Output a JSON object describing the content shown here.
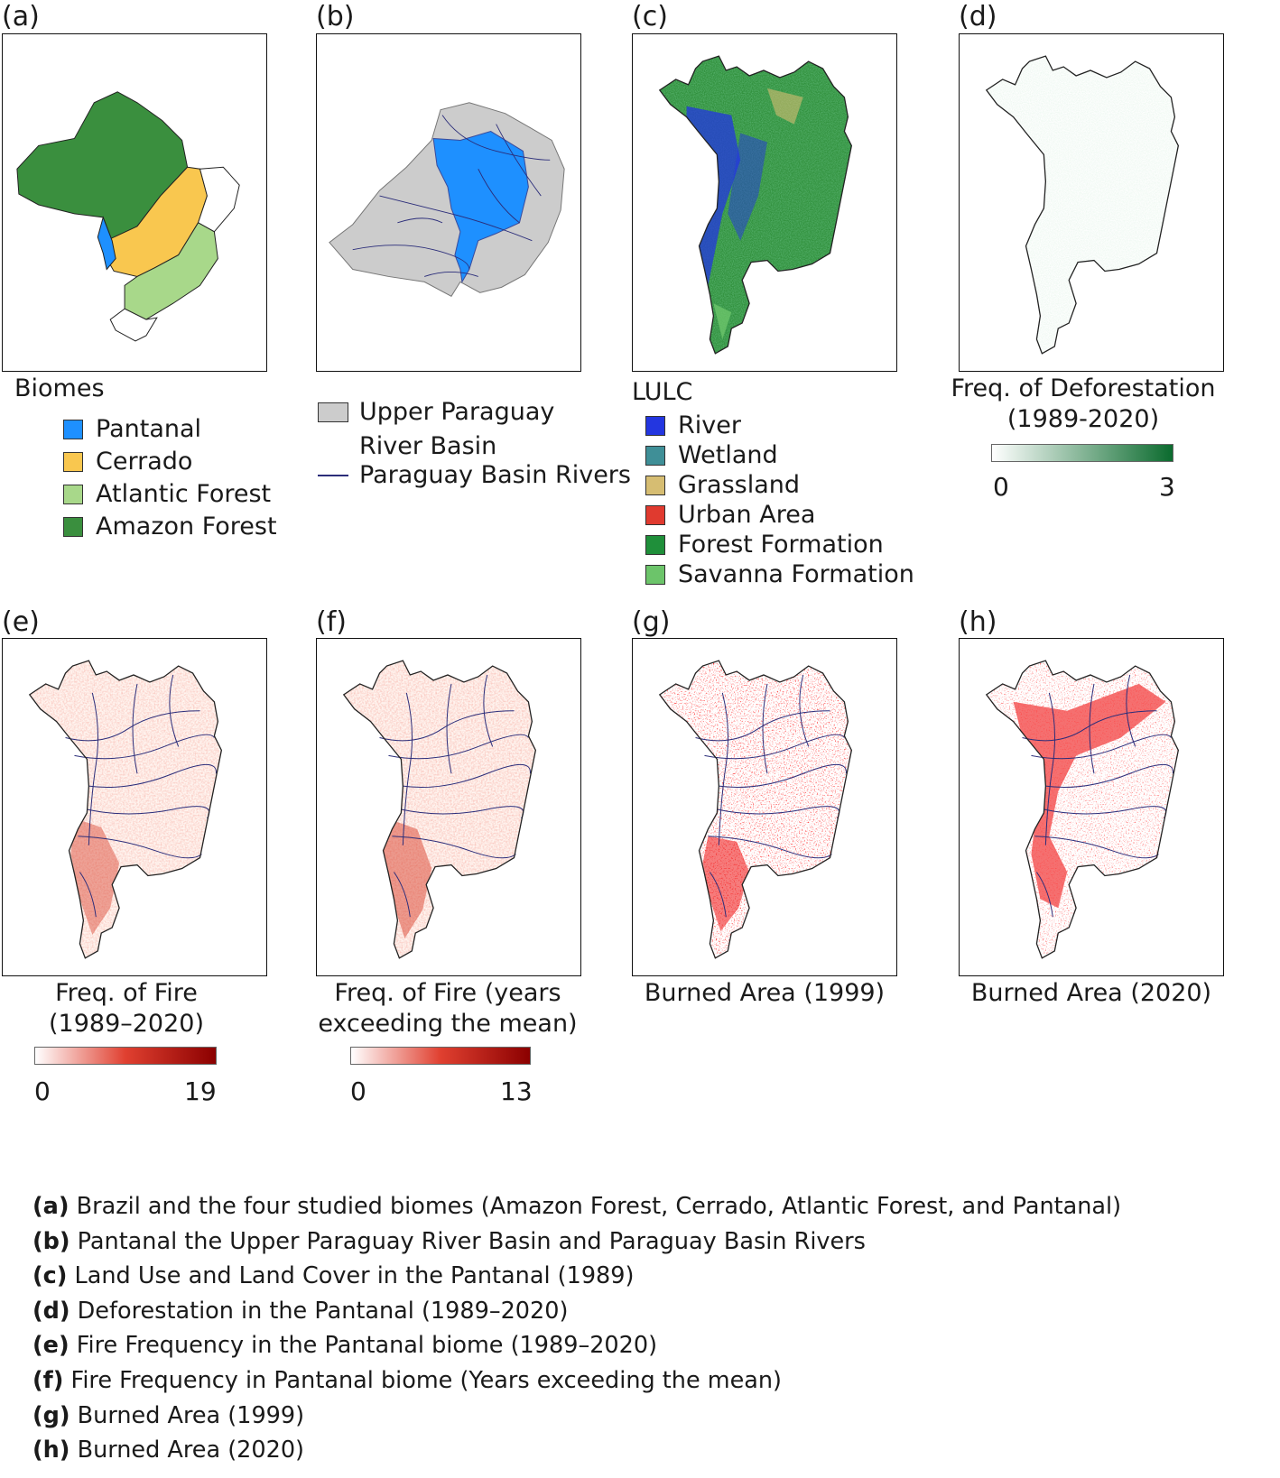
{
  "panels": {
    "a": {
      "label": "(a)",
      "legend_title": "Biomes",
      "items": [
        {
          "label": "Pantanal",
          "color": "#1e90ff"
        },
        {
          "label": "Cerrado",
          "color": "#f9c74f"
        },
        {
          "label": "Atlantic Forest",
          "color": "#a8d88a"
        },
        {
          "label": "Amazon Forest",
          "color": "#3a8f3e"
        }
      ]
    },
    "b": {
      "label": "(b)",
      "items": [
        {
          "label_line1": "Upper Paraguay",
          "label_line2": "River Basin",
          "color": "#cccccc"
        },
        {
          "label": "Paraguay Basin Rivers",
          "color": "#2b2d7a"
        }
      ]
    },
    "c": {
      "label": "(c)",
      "legend_title": "LULC",
      "items": [
        {
          "label": "River",
          "color": "#2336e0"
        },
        {
          "label": "Wetland",
          "color": "#3f8f97"
        },
        {
          "label": "Grassland",
          "color": "#d6bd72"
        },
        {
          "label": "Urban Area",
          "color": "#e03a2f"
        },
        {
          "label": "Forest Formation",
          "color": "#1f8f3a"
        },
        {
          "label": "Savanna Formation",
          "color": "#6cc46a"
        }
      ]
    },
    "d": {
      "label": "(d)",
      "legend_title_line1": "Freq. of Deforestation",
      "legend_title_line2": "(1989-2020)",
      "scale_min": "0",
      "scale_max": "3",
      "color_low": "#ffffff",
      "color_high": "#0b6b2e"
    },
    "e": {
      "label": "(e)",
      "legend_title_line1": "Freq. of Fire",
      "legend_title_line2": "(1989–2020)",
      "scale_min": "0",
      "scale_max": "19",
      "color_low": "#ffffff",
      "color_high": "#8b0000"
    },
    "f": {
      "label": "(f)",
      "legend_title_line1": "Freq. of Fire (years",
      "legend_title_line2": "exceeding the mean)",
      "scale_min": "0",
      "scale_max": "13",
      "color_low": "#ffffff",
      "color_high": "#8b0000"
    },
    "g": {
      "label": "(g)",
      "legend_title": "Burned Area (1999)"
    },
    "h": {
      "label": "(h)",
      "legend_title": "Burned Area (2020)"
    }
  },
  "captions": [
    {
      "key": "(a)",
      "text": " Brazil and the four studied biomes (Amazon Forest, Cerrado, Atlantic Forest, and Pantanal)"
    },
    {
      "key": "(b)",
      "text": " Pantanal the Upper Paraguay River Basin and Paraguay Basin Rivers"
    },
    {
      "key": "(c)",
      "text": " Land Use and Land Cover in the Pantanal (1989)"
    },
    {
      "key": "(d)",
      "text": " Deforestation in the Pantanal (1989–2020)"
    },
    {
      "key": "(e)",
      "text": " Fire Frequency in the Pantanal biome (1989–2020)"
    },
    {
      "key": "(f)",
      "text": " Fire Frequency in Pantanal biome (Years exceeding the mean)"
    },
    {
      "key": "(g)",
      "text": " Burned Area (1999)"
    },
    {
      "key": "(h)",
      "text": " Burned Area (2020)"
    }
  ]
}
